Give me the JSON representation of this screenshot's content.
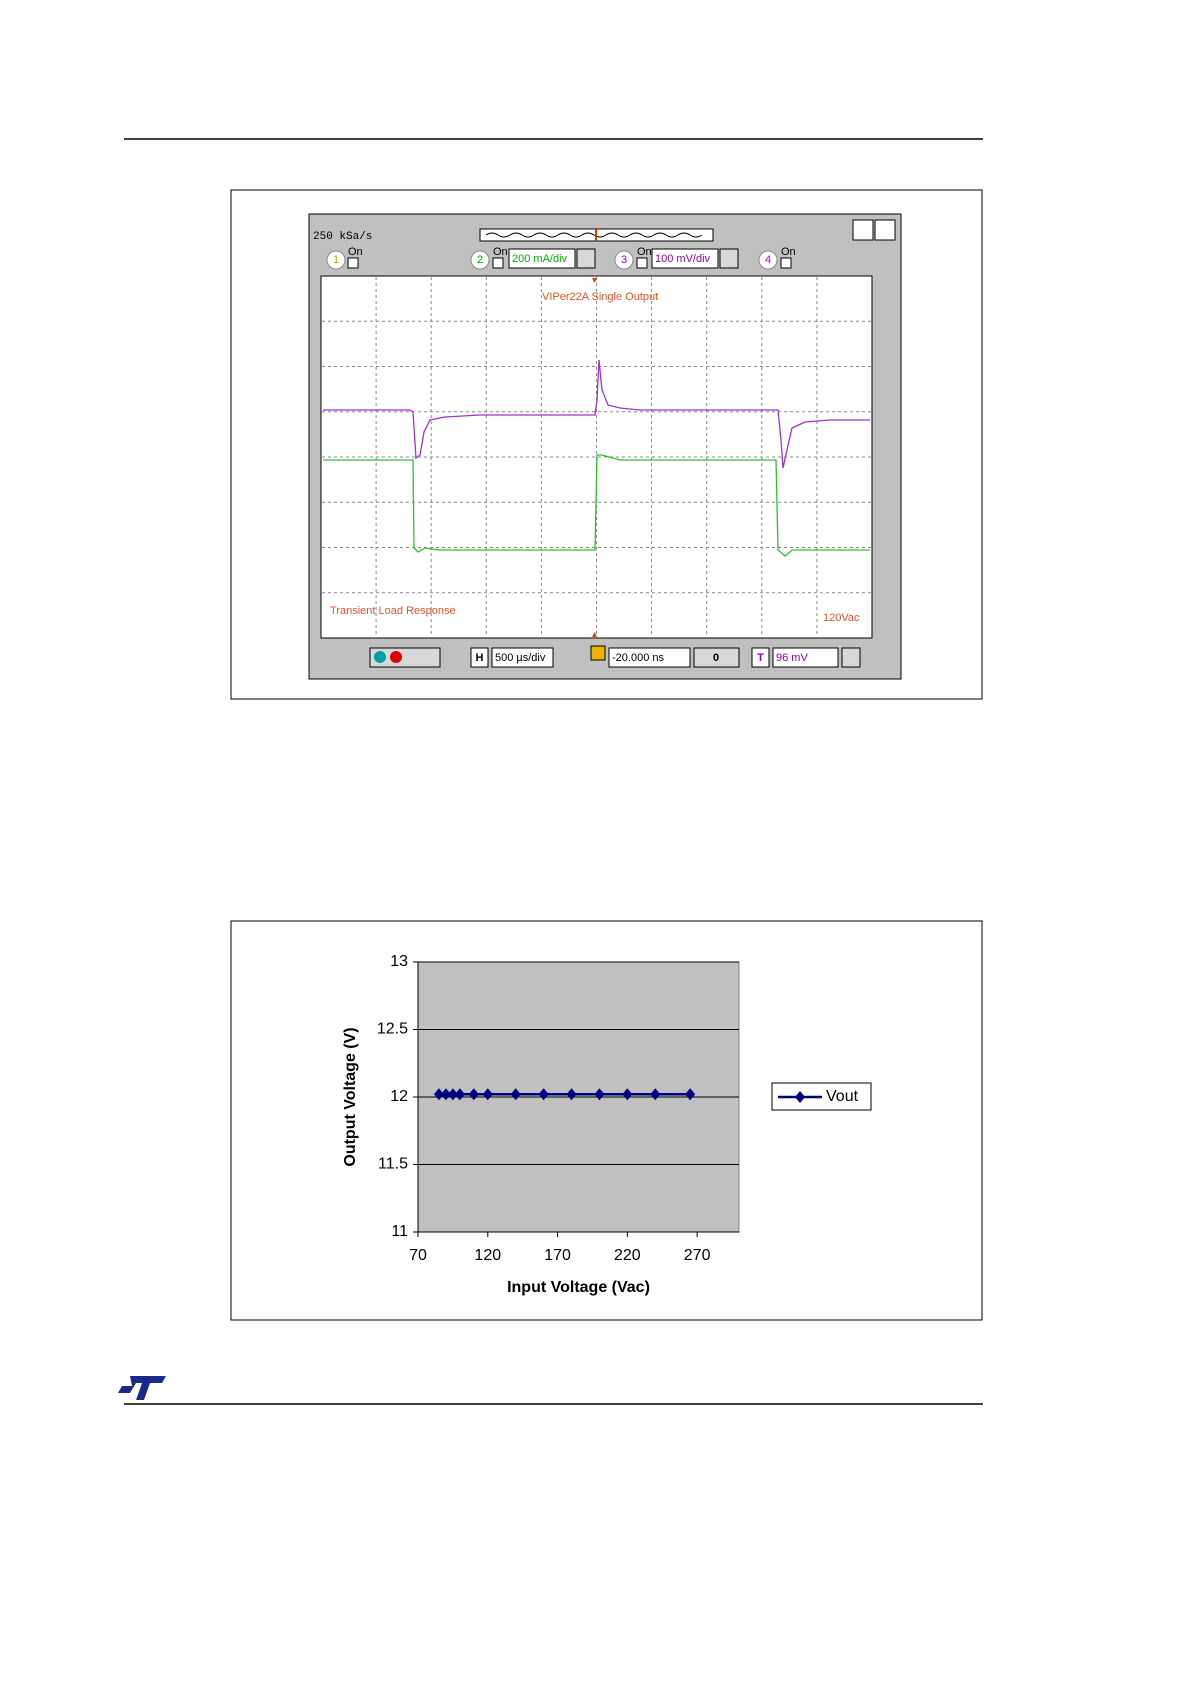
{
  "scope": {
    "sample_rate": "250 kSa/s",
    "channels": [
      {
        "number": "1",
        "state": "On"
      },
      {
        "number": "2",
        "state": "On",
        "scale": "200 mA/div"
      },
      {
        "number": "3",
        "state": "On",
        "scale": "100 mV/div"
      },
      {
        "number": "4",
        "state": "On"
      }
    ],
    "title": "VIPer22A Single Output",
    "caption": "Transient Load Response",
    "input": "120Vac",
    "timebase_button": "H",
    "timebase": "500 µs/div",
    "delay": "-20.000 ns",
    "zero": "0",
    "trigger_button": "T",
    "trigger_level": "96 mV"
  },
  "chart_data": {
    "type": "line",
    "x_label": "Input Voltage (Vac)",
    "y_label": "Output Voltage (V)",
    "x": [
      85,
      90,
      95,
      100,
      110,
      120,
      140,
      160,
      180,
      200,
      220,
      240,
      265
    ],
    "series": [
      {
        "name": "Vout",
        "color": "#000080",
        "values": [
          12.02,
          12.02,
          12.02,
          12.02,
          12.02,
          12.02,
          12.02,
          12.02,
          12.02,
          12.02,
          12.02,
          12.02,
          12.02
        ]
      }
    ],
    "xlim": [
      70,
      300
    ],
    "xticks": [
      70,
      120,
      170,
      220,
      270
    ],
    "ylim": [
      11,
      13
    ],
    "yticks": [
      11,
      11.5,
      12,
      12.5,
      13
    ],
    "grid": true,
    "legend": "right",
    "plot_background": "#c0c0c0"
  }
}
